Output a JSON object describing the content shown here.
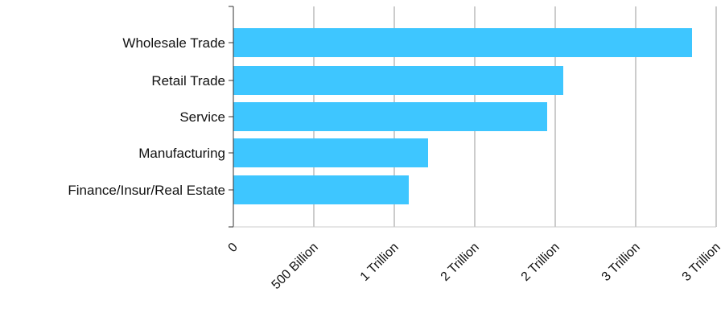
{
  "chart_data": {
    "type": "bar",
    "orientation": "horizontal",
    "categories": [
      "Wholesale Trade",
      "Retail Trade",
      "Service",
      "Manufacturing",
      "Finance/Insur/Real Estate"
    ],
    "values": [
      2850000000000,
      2050000000000,
      1950000000000,
      1210000000000,
      1090000000000
    ],
    "xlim": [
      0,
      3000000000000
    ],
    "x_ticks": [
      0,
      500000000000,
      1000000000000,
      1500000000000,
      2000000000000,
      2500000000000,
      3000000000000
    ],
    "x_tick_labels": [
      "0",
      "500 Billion",
      "1 Trillion",
      "2 Trillion",
      "2 Trillion",
      "3 Trillion",
      "3 Trillion"
    ],
    "title": "",
    "xlabel": "",
    "ylabel": "",
    "grid": "vertical",
    "legend": "none",
    "colors": {
      "bar": "#3ec6ff",
      "grid": "#999999",
      "axis": "#333333"
    }
  }
}
